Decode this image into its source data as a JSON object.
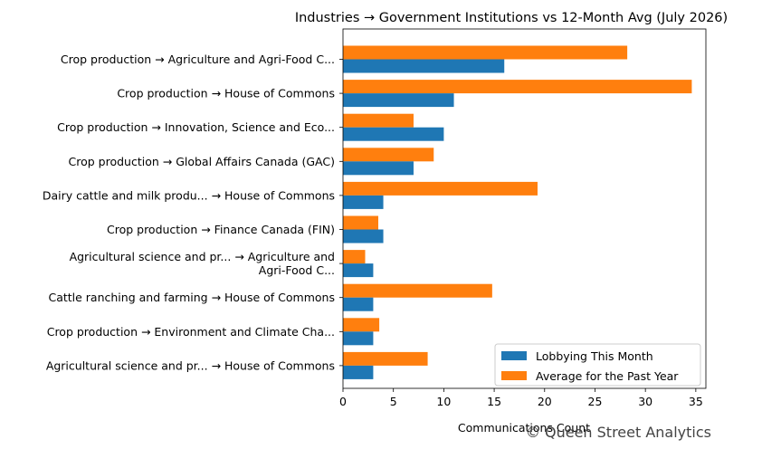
{
  "chart_data": {
    "type": "bar",
    "orientation": "horizontal",
    "title": "Industries → Government Institutions vs 12-Month Avg (July 2026)",
    "xlabel": "Communications Count",
    "ylabel": "",
    "xlim": [
      0,
      36
    ],
    "xticks": [
      0,
      5,
      10,
      15,
      20,
      25,
      30,
      35
    ],
    "categories": [
      [
        "Crop production → Agriculture and Agri-Food C..."
      ],
      [
        "Crop production → House of Commons"
      ],
      [
        "Crop production → Innovation, Science and Eco..."
      ],
      [
        "Crop production → Global Affairs Canada (GAC)"
      ],
      [
        "Dairy cattle and milk produ... → House of Commons"
      ],
      [
        "Crop production → Finance Canada (FIN)"
      ],
      [
        "Agricultural science and pr... → Agriculture and",
        "Agri-Food C..."
      ],
      [
        "Cattle ranching and farming → House of Commons"
      ],
      [
        "Crop production → Environment and Climate Cha..."
      ],
      [
        "Agricultural science and pr... → House of Commons"
      ]
    ],
    "series": [
      {
        "name": "Lobbying This Month",
        "color": "#1f77b4",
        "values": [
          16,
          11,
          10,
          7,
          4,
          4,
          3,
          3,
          3,
          3
        ]
      },
      {
        "name": "Average for the Past Year",
        "color": "#ff7f0e",
        "values": [
          28.2,
          34.6,
          7.0,
          9.0,
          19.3,
          3.5,
          2.2,
          14.8,
          3.6,
          8.4
        ]
      }
    ],
    "legend_position": "lower-right",
    "grid": false
  },
  "watermark": "© Queen Street Analytics"
}
